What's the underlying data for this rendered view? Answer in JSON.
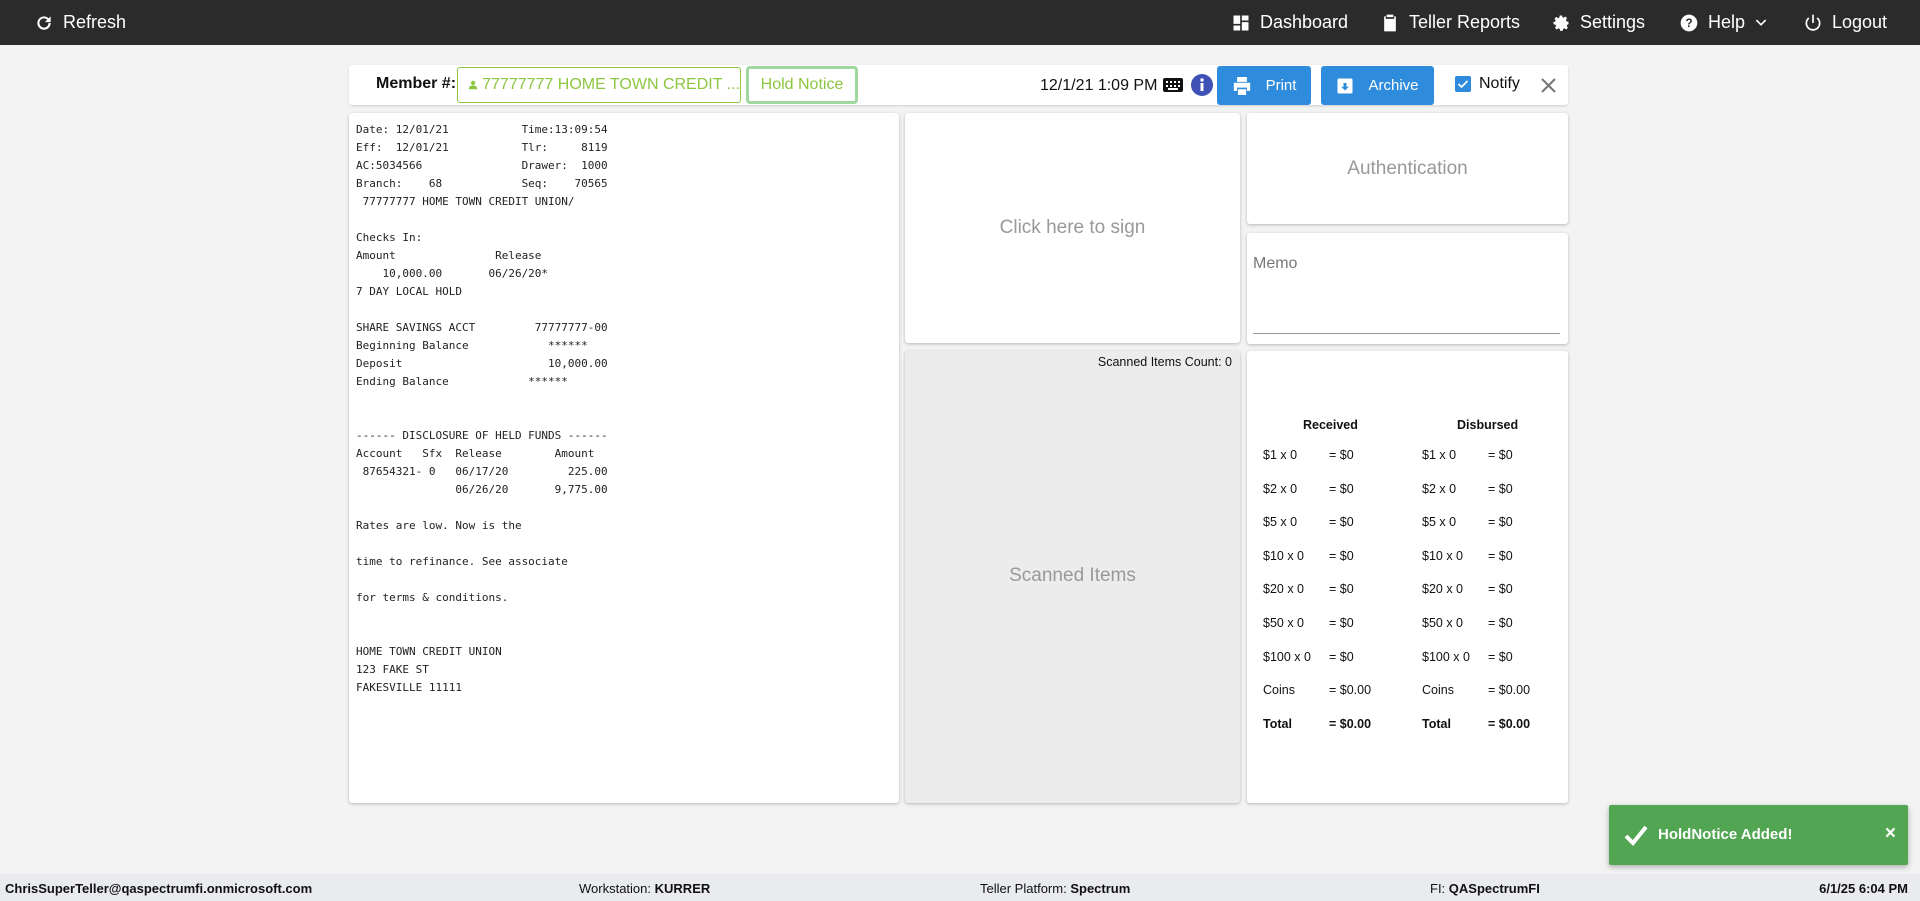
{
  "topbar": {
    "refresh": "Refresh",
    "dashboard": "Dashboard",
    "teller_reports": "Teller Reports",
    "settings": "Settings",
    "help": "Help",
    "logout": "Logout"
  },
  "header": {
    "member_label": "Member #:",
    "member_value": "77777777 HOME TOWN CREDIT ...",
    "hold_notice": "Hold Notice",
    "datetime": "12/1/21 1:09 PM",
    "print": "Print",
    "archive": "Archive",
    "notify": "Notify",
    "notify_checked": true
  },
  "receipt": {
    "lines": [
      "Date: 12/01/21           Time:13:09:54",
      "Eff:  12/01/21           Tlr:     8119",
      "AC:5034566               Drawer:  1000",
      "Branch:    68            Seq:    70565",
      " 77777777 HOME TOWN CREDIT UNION/",
      "",
      "Checks In:",
      "Amount               Release",
      "    10,000.00       06/26/20*",
      "7 DAY LOCAL HOLD",
      "",
      "SHARE SAVINGS ACCT         77777777-00",
      "Beginning Balance            ******",
      "Deposit                      10,000.00",
      "Ending Balance            ******",
      "",
      "",
      "------ DISCLOSURE OF HELD FUNDS ------",
      "Account   Sfx  Release        Amount",
      " 87654321- 0   06/17/20         225.00",
      "               06/26/20       9,775.00",
      "",
      "Rates are low. Now is the",
      "",
      "time to refinance. See associate",
      "",
      "for terms & conditions.",
      "",
      "",
      "HOME TOWN CREDIT UNION",
      "123 FAKE ST",
      "FAKESVILLE 11111"
    ]
  },
  "signature": {
    "prompt": "Click here to sign"
  },
  "scanned": {
    "count_label": "Scanned Items Count: 0",
    "title": "Scanned Items"
  },
  "authentication": {
    "title": "Authentication"
  },
  "memo": {
    "label": "Memo",
    "value": ""
  },
  "cash": {
    "received_header": "Received",
    "disbursed_header": "Disbursed",
    "rows": [
      {
        "r_label": "$1 x 0",
        "r_value": "= $0",
        "d_label": "$1 x 0",
        "d_value": "= $0"
      },
      {
        "r_label": "$2 x 0",
        "r_value": "= $0",
        "d_label": "$2 x 0",
        "d_value": "= $0"
      },
      {
        "r_label": "$5 x 0",
        "r_value": "= $0",
        "d_label": "$5 x 0",
        "d_value": "= $0"
      },
      {
        "r_label": "$10 x 0",
        "r_value": "= $0",
        "d_label": "$10 x 0",
        "d_value": "= $0"
      },
      {
        "r_label": "$20 x 0",
        "r_value": "= $0",
        "d_label": "$20 x 0",
        "d_value": "= $0"
      },
      {
        "r_label": "$50 x 0",
        "r_value": "= $0",
        "d_label": "$50 x 0",
        "d_value": "= $0"
      },
      {
        "r_label": "$100 x 0",
        "r_value": "= $0",
        "d_label": "$100 x 0",
        "d_value": "= $0"
      },
      {
        "r_label": "Coins",
        "r_value": "= $0.00",
        "d_label": "Coins",
        "d_value": "= $0.00"
      },
      {
        "r_label": "Total",
        "r_value": "= $0.00",
        "d_label": "Total",
        "d_value": "= $0.00",
        "bold": true
      }
    ]
  },
  "toast": {
    "message": "HoldNotice Added!",
    "close": "×"
  },
  "footer": {
    "user": "ChrisSuperTeller@qaspectrumfi.onmicrosoft.com",
    "workstation_label": "Workstation:",
    "workstation": "KURRER",
    "platform_label": "Teller Platform:",
    "platform": "Spectrum",
    "fi_label": "FI:",
    "fi": "QASpectrumFI",
    "datetime": "6/1/25 6:04 PM"
  },
  "colors": {
    "topbar": "#2b2b2b",
    "accent_green": "#8dc63f",
    "button_blue": "#2f8bdb",
    "toast_green": "#52a552",
    "info_blue": "#3f51b5"
  }
}
